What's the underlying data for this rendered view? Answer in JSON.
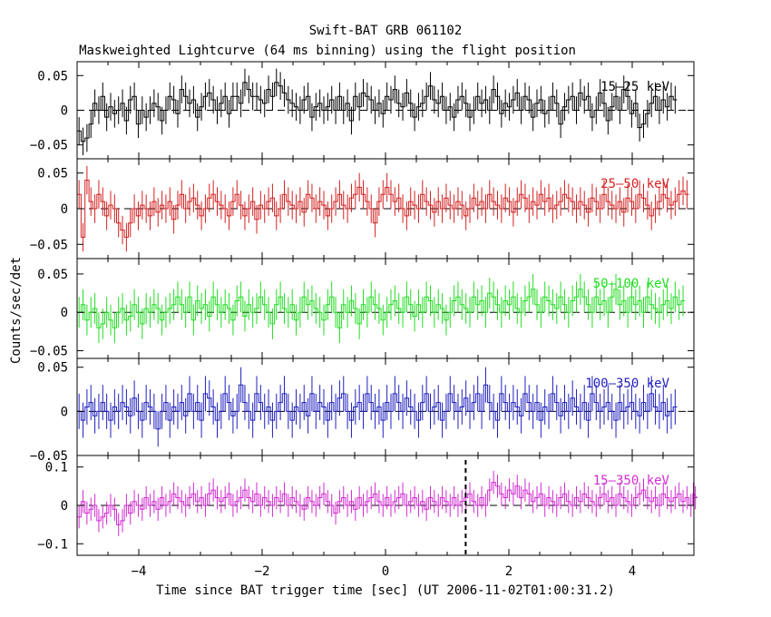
{
  "header": {
    "title": "Swift-BAT GRB 061102",
    "subtitle": "Maskweighted Lightcurve (64 ms binning) using the flight position"
  },
  "axes": {
    "xlabel": "Time since BAT trigger time [sec] (UT 2006-11-02T01:00:31.2)",
    "ylabel": "Counts/sec/det"
  },
  "chart_data": {
    "type": "line",
    "xlim": [
      -5,
      5
    ],
    "bin_width_sec": 0.064,
    "xticks": [
      -4,
      -2,
      0,
      2,
      4
    ],
    "xtick_labels": [
      "−4",
      "−2",
      "0",
      "2",
      "4"
    ],
    "trigger_marker_x": 1.3,
    "panels": [
      {
        "name": "15–25 keV",
        "color": "#000000",
        "ylim": [
          -0.07,
          0.07
        ],
        "yticks": [
          0.05,
          0,
          -0.05
        ],
        "ytick_labels": [
          "0.05",
          "0",
          "−0.05"
        ],
        "err": 0.02,
        "y": [
          -0.03,
          -0.045,
          -0.04,
          -0.02,
          0.01,
          0.0,
          0.02,
          -0.01,
          0.005,
          -0.005,
          0.0,
          0.01,
          -0.015,
          0.015,
          0.02,
          -0.02,
          0.0,
          -0.01,
          0.0,
          0.01,
          0.005,
          -0.015,
          0.0,
          0.02,
          0.015,
          -0.005,
          0.03,
          0.02,
          0.01,
          0.015,
          -0.01,
          0.005,
          0.02,
          0.025,
          0.015,
          0.0,
          0.01,
          0.02,
          -0.005,
          0.02,
          0.02,
          0.01,
          0.04,
          0.03,
          0.02,
          0.02,
          0.015,
          0.01,
          0.03,
          0.02,
          0.04,
          0.035,
          0.025,
          0.015,
          0.01,
          0.005,
          0.0,
          0.015,
          0.02,
          -0.01,
          0.005,
          0.01,
          0.0,
          0.005,
          0.015,
          0.0,
          0.02,
          0.0,
          0.01,
          -0.015,
          0.02,
          0.005,
          0.025,
          0.02,
          0.015,
          0.0,
          0.01,
          -0.005,
          0.02,
          0.015,
          0.03,
          0.01,
          0.005,
          0.025,
          0.01,
          -0.01,
          0.005,
          0.01,
          0.02,
          0.035,
          0.015,
          0.01,
          0.02,
          0.0,
          0.005,
          -0.01,
          0.015,
          0.02,
          0.01,
          -0.01,
          0.0,
          0.02,
          0.01,
          0.015,
          0.0,
          0.03,
          0.02,
          -0.005,
          0.01,
          0.005,
          0.015,
          0.025,
          0.0,
          0.02,
          0.015,
          -0.01,
          0.01,
          0.015,
          -0.005,
          0.0,
          0.02,
          0.01,
          -0.02,
          0.005,
          0.015,
          0.02,
          0.0,
          0.025,
          0.015,
          0.02,
          -0.01,
          0.0,
          0.025,
          0.01,
          -0.015,
          0.005,
          0.02,
          0.0,
          0.03,
          0.02,
          -0.005,
          0.01,
          -0.025,
          -0.02,
          -0.005,
          0.01,
          0.02,
          0.0,
          0.015,
          0.005,
          0.02,
          0.015
        ]
      },
      {
        "name": "25–50 keV",
        "color": "#d42020",
        "ylim": [
          -0.07,
          0.07
        ],
        "yticks": [
          0.05,
          0,
          -0.05
        ],
        "ytick_labels": [
          "0.05",
          "0",
          "−0.05"
        ],
        "err": 0.02,
        "y": [
          0.02,
          -0.04,
          0.04,
          0.01,
          0.0,
          0.02,
          0.01,
          -0.01,
          0.005,
          0.0,
          -0.02,
          -0.03,
          -0.04,
          -0.02,
          0.0,
          -0.01,
          0.005,
          0.0,
          -0.01,
          0.01,
          -0.005,
          0.005,
          0.0,
          0.01,
          -0.015,
          0.005,
          0.02,
          0.0,
          0.01,
          0.015,
          0.005,
          -0.01,
          0.0,
          0.015,
          0.02,
          0.01,
          0.005,
          0.0,
          -0.01,
          0.01,
          0.02,
          0.005,
          -0.01,
          0.0,
          0.01,
          -0.015,
          0.005,
          0.0,
          0.01,
          0.015,
          -0.01,
          0.0,
          0.02,
          0.01,
          0.005,
          0.0,
          0.01,
          -0.005,
          0.02,
          0.015,
          0.0,
          0.01,
          0.005,
          -0.01,
          0.0,
          0.01,
          0.02,
          0.005,
          0.0,
          0.015,
          0.02,
          0.03,
          0.02,
          0.01,
          0.0,
          -0.02,
          0.01,
          0.02,
          0.03,
          0.02,
          0.01,
          0.015,
          0.0,
          -0.01,
          0.01,
          0.005,
          0.0,
          0.02,
          0.01,
          0.005,
          -0.005,
          0.01,
          0.0,
          0.015,
          0.005,
          0.0,
          0.01,
          0.005,
          -0.01,
          0.0,
          0.015,
          0.005,
          0.01,
          0.0,
          0.02,
          0.01,
          0.005,
          0.0,
          0.015,
          0.01,
          -0.005,
          0.01,
          0.02,
          0.015,
          0.0,
          0.01,
          0.005,
          0.02,
          0.01,
          0.015,
          0.0,
          0.005,
          0.01,
          0.02,
          0.015,
          0.01,
          0.0,
          0.01,
          0.005,
          -0.005,
          0.015,
          0.01,
          0.0,
          0.02,
          0.01,
          0.005,
          0.0,
          0.01,
          -0.005,
          0.015,
          0.01,
          0.0,
          0.02,
          0.015,
          0.005,
          -0.01,
          0.0,
          0.01,
          0.02,
          0.015,
          0.005,
          0.01,
          0.02,
          0.025,
          0.02
        ]
      },
      {
        "name": "50–100 keV",
        "color": "#22dd22",
        "ylim": [
          -0.06,
          0.07
        ],
        "yticks": [
          0.05,
          0,
          -0.05
        ],
        "ytick_labels": [
          "0.05",
          "0",
          "−0.05"
        ],
        "err": 0.02,
        "y": [
          0.0,
          0.01,
          -0.01,
          0.0,
          0.005,
          -0.02,
          -0.015,
          0.0,
          -0.01,
          -0.02,
          0.0,
          0.005,
          -0.01,
          -0.005,
          0.01,
          0.0,
          -0.015,
          0.005,
          0.0,
          0.01,
          0.005,
          -0.01,
          0.0,
          0.005,
          0.01,
          0.02,
          0.01,
          0.0,
          0.02,
          -0.01,
          0.015,
          0.005,
          0.01,
          -0.005,
          0.02,
          0.01,
          0.0,
          0.01,
          0.005,
          -0.01,
          0.015,
          0.02,
          -0.005,
          0.01,
          0.0,
          0.005,
          0.02,
          0.01,
          0.0,
          -0.015,
          0.01,
          0.02,
          0.005,
          0.0,
          0.01,
          -0.01,
          0.0,
          0.02,
          0.01,
          0.015,
          0.005,
          0.0,
          -0.01,
          0.01,
          0.02,
          0.0,
          -0.02,
          0.01,
          0.0,
          0.015,
          0.005,
          -0.015,
          0.01,
          0.0,
          0.02,
          0.01,
          0.005,
          -0.01,
          0.0,
          0.01,
          0.015,
          0.005,
          0.0,
          0.02,
          0.01,
          -0.005,
          0.01,
          0.0,
          0.02,
          0.015,
          0.0,
          0.01,
          0.005,
          -0.01,
          0.0,
          0.015,
          0.02,
          0.01,
          0.005,
          0.0,
          0.02,
          0.01,
          0.015,
          0.0,
          0.025,
          0.02,
          0.01,
          0.0,
          0.015,
          0.01,
          0.02,
          0.005,
          0.0,
          0.015,
          0.02,
          0.03,
          0.01,
          0.0,
          0.02,
          0.015,
          0.01,
          0.005,
          0.02,
          0.01,
          0.0,
          0.015,
          0.02,
          0.03,
          0.02,
          0.01,
          0.0,
          0.02,
          0.01,
          0.015,
          0.0,
          0.02,
          0.03,
          0.01,
          0.015,
          0.0,
          0.02,
          0.01,
          0.015,
          0.0,
          0.02,
          0.01,
          0.005,
          0.0,
          0.01,
          0.015,
          0.005,
          0.02,
          0.01,
          0.015
        ]
      },
      {
        "name": "100–350 keV",
        "color": "#1f1fbf",
        "ylim": [
          -0.05,
          0.06
        ],
        "yticks": [
          0.05,
          0,
          -0.05
        ],
        "ytick_labels": [
          "0.05",
          "0",
          "−0.05"
        ],
        "err": 0.02,
        "y": [
          0.0,
          -0.01,
          0.005,
          0.01,
          -0.005,
          0.0,
          0.01,
          0.0,
          -0.01,
          0.005,
          0.0,
          0.01,
          0.005,
          -0.005,
          0.015,
          0.0,
          -0.01,
          0.01,
          0.005,
          0.0,
          -0.02,
          0.0,
          0.01,
          -0.01,
          0.005,
          0.0,
          0.01,
          -0.005,
          0.02,
          0.0,
          0.01,
          -0.01,
          0.02,
          0.015,
          0.005,
          -0.01,
          0.0,
          0.02,
          0.01,
          -0.005,
          0.0,
          0.03,
          0.01,
          0.0,
          -0.01,
          0.02,
          0.01,
          0.0,
          0.005,
          -0.01,
          0.0,
          0.01,
          0.02,
          0.0,
          -0.01,
          0.005,
          0.0,
          0.01,
          -0.005,
          0.02,
          0.0,
          0.01,
          0.005,
          -0.01,
          0.01,
          0.0,
          0.015,
          0.02,
          0.0,
          -0.01,
          0.005,
          0.01,
          0.0,
          0.02,
          0.01,
          0.0,
          0.005,
          -0.01,
          0.01,
          0.0,
          0.02,
          0.01,
          0.0,
          0.015,
          0.005,
          0.0,
          -0.01,
          0.01,
          0.02,
          0.0,
          0.005,
          0.01,
          -0.01,
          0.0,
          0.02,
          0.01,
          0.0,
          0.005,
          0.015,
          0.0,
          0.01,
          0.02,
          0.0,
          0.03,
          0.01,
          0.0,
          -0.01,
          0.02,
          0.01,
          0.0,
          0.01,
          0.005,
          -0.005,
          0.02,
          0.01,
          0.0,
          0.01,
          -0.01,
          0.005,
          0.0,
          0.02,
          0.01,
          -0.005,
          0.01,
          0.0,
          0.015,
          0.005,
          0.0,
          0.01,
          -0.01,
          0.02,
          0.01,
          0.0,
          0.005,
          0.01,
          0.0,
          -0.01,
          0.01,
          0.0,
          0.005,
          0.01,
          0.0,
          -0.005,
          0.01,
          0.0,
          0.02,
          0.005,
          0.0,
          0.01,
          -0.005,
          0.0,
          0.005
        ]
      },
      {
        "name": "15–350 keV",
        "color": "#d22ad2",
        "ylim": [
          -0.13,
          0.13
        ],
        "yticks": [
          0.1,
          0,
          -0.1
        ],
        "ytick_labels": [
          "0.1",
          "0",
          "−0.1"
        ],
        "err": 0.03,
        "y": [
          -0.03,
          0.01,
          -0.02,
          -0.01,
          0.0,
          -0.04,
          -0.03,
          -0.02,
          0.0,
          -0.01,
          -0.05,
          -0.04,
          0.0,
          -0.02,
          0.01,
          0.0,
          -0.01,
          0.02,
          0.0,
          0.01,
          -0.01,
          0.02,
          0.0,
          0.01,
          0.03,
          0.02,
          0.01,
          0.0,
          0.02,
          0.03,
          0.01,
          0.02,
          0.0,
          0.03,
          0.04,
          0.02,
          0.01,
          0.02,
          0.03,
          0.0,
          0.01,
          0.02,
          0.04,
          0.02,
          0.01,
          0.03,
          0.0,
          0.02,
          0.01,
          0.0,
          0.02,
          0.01,
          0.03,
          0.0,
          0.02,
          0.01,
          0.0,
          -0.01,
          0.02,
          0.01,
          0.0,
          0.02,
          0.03,
          0.01,
          0.0,
          -0.02,
          0.01,
          0.02,
          0.0,
          0.01,
          -0.01,
          0.02,
          0.0,
          0.01,
          0.02,
          0.03,
          0.01,
          0.0,
          0.02,
          0.0,
          0.01,
          0.02,
          0.03,
          0.0,
          0.01,
          0.02,
          0.0,
          0.01,
          -0.01,
          0.02,
          0.01,
          0.0,
          0.02,
          0.01,
          0.0,
          0.02,
          0.0,
          0.01,
          0.02,
          0.03,
          0.01,
          0.0,
          0.02,
          0.0,
          0.04,
          0.06,
          0.05,
          0.03,
          0.02,
          0.04,
          0.03,
          0.05,
          0.02,
          0.04,
          0.03,
          0.01,
          0.02,
          0.03,
          0.0,
          0.02,
          0.01,
          0.0,
          0.02,
          0.03,
          0.01,
          0.0,
          0.02,
          0.01,
          0.03,
          0.02,
          0.01,
          0.0,
          0.02,
          0.03,
          0.01,
          0.02,
          0.0,
          0.03,
          0.02,
          0.01,
          0.0,
          0.02,
          0.03,
          0.04,
          0.02,
          0.01,
          0.02,
          0.0,
          0.03,
          0.02,
          0.01,
          0.02,
          0.03,
          0.01,
          0.02,
          0.0,
          0.03,
          0.02
        ]
      }
    ]
  }
}
